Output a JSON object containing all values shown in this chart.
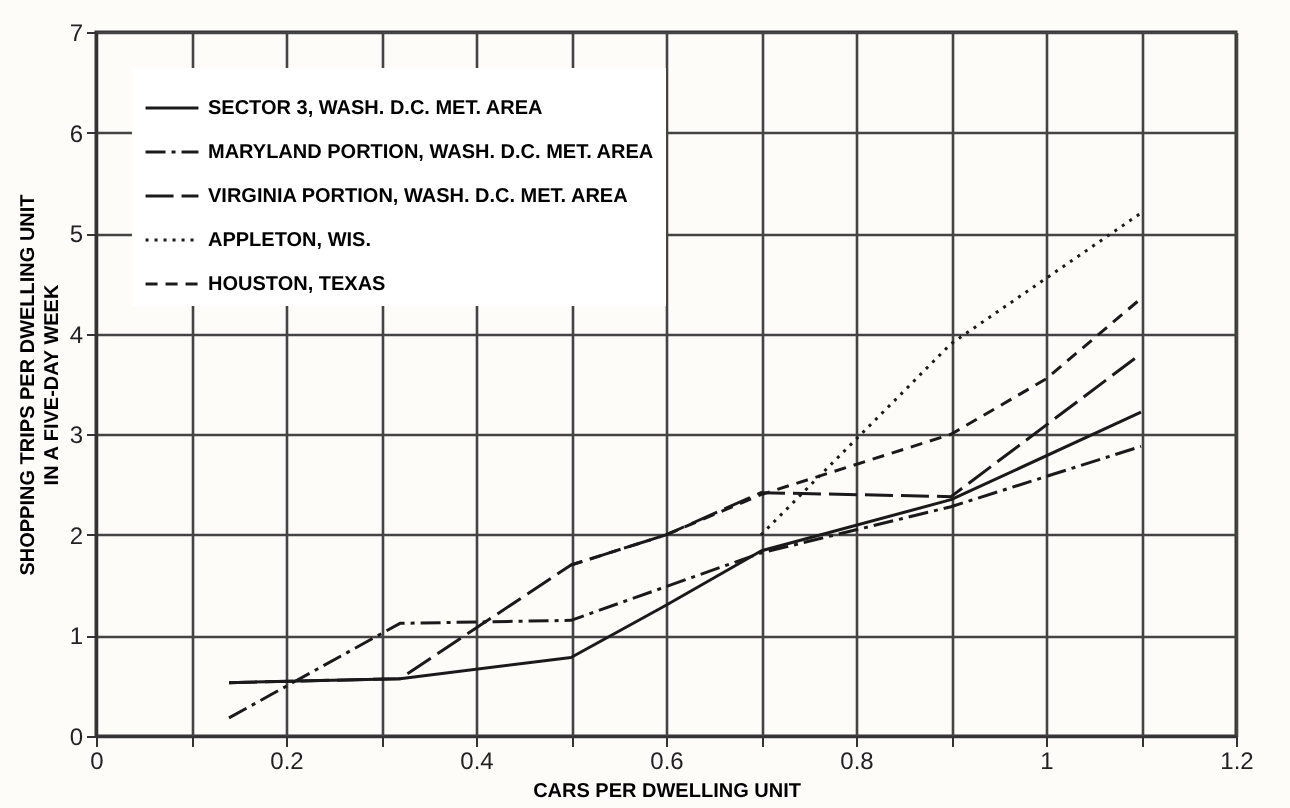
{
  "chart_data": {
    "type": "line",
    "xlabel": "CARS PER DWELLING UNIT",
    "ylabel": "SHOPPING TRIPS PER DWELLING UNIT\nIN A FIVE-DAY WEEK",
    "xlim": [
      0,
      1.2
    ],
    "ylim": [
      0,
      7
    ],
    "xticks": [
      0,
      {
        "value": 0.1,
        "label": null
      },
      0.2,
      {
        "value": 0.3,
        "label": null
      },
      0.4,
      {
        "value": 0.5,
        "label": null
      },
      0.6,
      {
        "value": 0.7,
        "label": null
      },
      0.8,
      {
        "value": 0.9,
        "label": null
      },
      1.0,
      {
        "value": 1.1,
        "label": null
      },
      1.2
    ],
    "yticks": [
      0,
      1,
      2,
      3,
      4,
      5,
      6,
      7
    ],
    "grid": true,
    "legend": "top left",
    "series": [
      {
        "name": "SECTOR 3, WASH. D.C. MET. AREA",
        "color": "#1a1a1a",
        "line_style": "solid",
        "x": [
          0.14,
          0.32,
          0.5,
          0.6,
          0.7,
          0.9,
          1.1
        ],
        "values": [
          0.53,
          0.57,
          0.78,
          1.3,
          1.84,
          2.35,
          3.22
        ]
      },
      {
        "name": "MARYLAND PORTION, WASH. D.C. MET. AREA",
        "color": "#1a1a1a",
        "line_style": "dashdot",
        "x": [
          0.14,
          0.32,
          0.5,
          0.7,
          0.9,
          1.1
        ],
        "values": [
          0.18,
          1.12,
          1.15,
          1.82,
          2.28,
          2.88
        ]
      },
      {
        "name": "VIRGINIA PORTION, WASH. D.C. MET. AREA",
        "color": "#1a1a1a",
        "line_style": "longdash",
        "x": [
          0.14,
          0.32,
          0.5,
          0.6,
          0.7,
          0.9,
          1.1
        ],
        "values": [
          0.53,
          0.57,
          1.7,
          2.0,
          2.42,
          2.38,
          3.8
        ]
      },
      {
        "name": "APPLETON, WIS.",
        "color": "#1a1a1a",
        "line_style": "dotted",
        "x": [
          0.7,
          0.9,
          1.1
        ],
        "values": [
          2.0,
          3.9,
          5.2
        ]
      },
      {
        "name": "HOUSTON, TEXAS",
        "color": "#1a1a1a",
        "line_style": "dashed",
        "x": [
          0.5,
          0.6,
          0.7,
          0.9,
          1.0,
          1.1
        ],
        "values": [
          1.7,
          2.0,
          2.4,
          3.0,
          3.55,
          4.35
        ]
      }
    ]
  }
}
